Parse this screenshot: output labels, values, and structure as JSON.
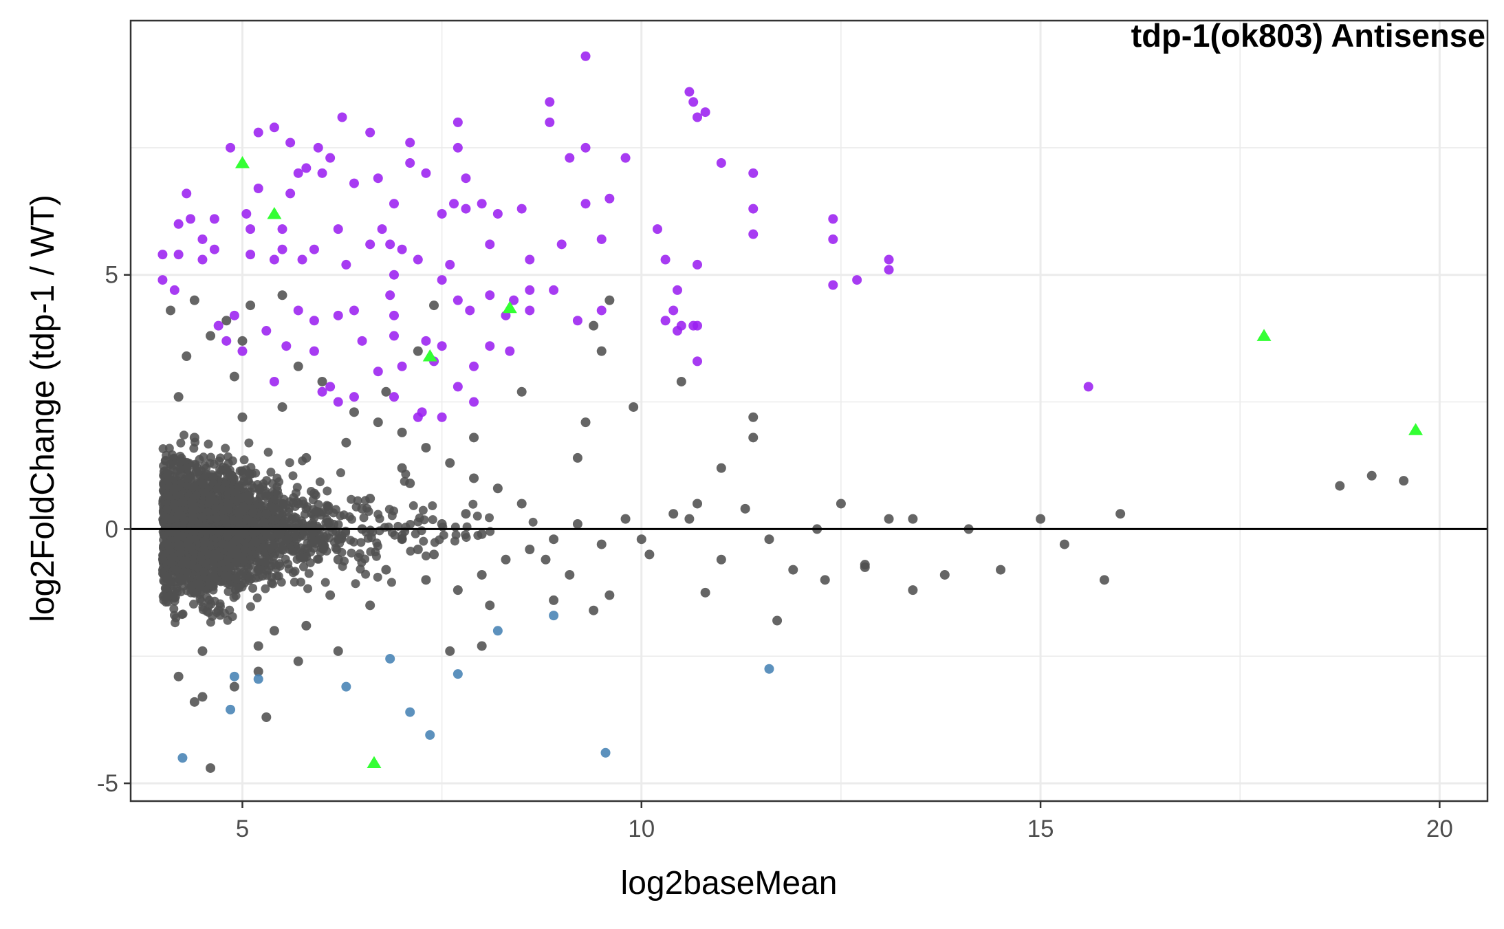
{
  "chart_data": {
    "type": "scatter",
    "title": "tdp-1(ok803) Antisense",
    "xlabel": "log2baseMean",
    "ylabel": "log2FoldChange (tdp-1 / WT)",
    "xlim": [
      3.6,
      20.6
    ],
    "ylim": [
      -5.35,
      10.0
    ],
    "x_ticks": [
      5,
      10,
      15,
      20
    ],
    "x_tick_labels": [
      "5",
      "10",
      "15",
      "20"
    ],
    "y_ticks": [
      -5,
      0,
      5
    ],
    "y_tick_labels": [
      "-5",
      "0",
      "5"
    ],
    "grid": true,
    "legend": "none",
    "reference_line_y": 0,
    "colors": {
      "up": "#9b20f0",
      "down": "#4682b4",
      "ns": "#505050",
      "highlight": "#33ff33",
      "zero_line": "#000000"
    },
    "series": [
      {
        "marker": "circle",
        "color_key": "up",
        "points": [
          [
            9.3,
            9.3
          ],
          [
            10.6,
            8.6
          ],
          [
            10.65,
            8.4
          ],
          [
            10.8,
            8.2
          ],
          [
            10.7,
            8.1
          ],
          [
            8.85,
            8.4
          ],
          [
            8.85,
            8.0
          ],
          [
            7.7,
            8.0
          ],
          [
            7.7,
            7.5
          ],
          [
            6.25,
            8.1
          ],
          [
            6.6,
            7.8
          ],
          [
            7.1,
            7.6
          ],
          [
            5.2,
            7.8
          ],
          [
            5.4,
            7.9
          ],
          [
            5.6,
            7.6
          ],
          [
            5.95,
            7.5
          ],
          [
            6.1,
            7.3
          ],
          [
            4.85,
            7.5
          ],
          [
            7.1,
            7.2
          ],
          [
            9.3,
            7.5
          ],
          [
            9.1,
            7.3
          ],
          [
            9.8,
            7.3
          ],
          [
            11.0,
            7.2
          ],
          [
            11.4,
            7.0
          ],
          [
            7.8,
            6.9
          ],
          [
            7.3,
            7.0
          ],
          [
            6.0,
            7.0
          ],
          [
            5.8,
            7.1
          ],
          [
            5.7,
            7.0
          ],
          [
            6.4,
            6.8
          ],
          [
            6.7,
            6.9
          ],
          [
            5.2,
            6.7
          ],
          [
            5.6,
            6.6
          ],
          [
            4.3,
            6.6
          ],
          [
            5.05,
            6.2
          ],
          [
            9.3,
            6.4
          ],
          [
            9.6,
            6.5
          ],
          [
            11.4,
            6.3
          ],
          [
            12.4,
            6.1
          ],
          [
            7.8,
            6.3
          ],
          [
            7.5,
            6.2
          ],
          [
            7.65,
            6.4
          ],
          [
            8.0,
            6.4
          ],
          [
            8.2,
            6.2
          ],
          [
            8.5,
            6.3
          ],
          [
            6.9,
            6.4
          ],
          [
            4.2,
            6.0
          ],
          [
            4.35,
            6.1
          ],
          [
            4.65,
            6.1
          ],
          [
            5.1,
            5.9
          ],
          [
            5.5,
            5.9
          ],
          [
            6.2,
            5.9
          ],
          [
            6.75,
            5.9
          ],
          [
            10.2,
            5.9
          ],
          [
            9.5,
            5.7
          ],
          [
            9.0,
            5.6
          ],
          [
            11.4,
            5.8
          ],
          [
            12.4,
            5.7
          ],
          [
            4.5,
            5.7
          ],
          [
            4.65,
            5.5
          ],
          [
            5.9,
            5.5
          ],
          [
            5.5,
            5.5
          ],
          [
            6.6,
            5.6
          ],
          [
            6.85,
            5.6
          ],
          [
            7.0,
            5.5
          ],
          [
            8.1,
            5.6
          ],
          [
            4.0,
            5.4
          ],
          [
            4.2,
            5.4
          ],
          [
            4.5,
            5.3
          ],
          [
            5.1,
            5.4
          ],
          [
            5.4,
            5.3
          ],
          [
            5.75,
            5.3
          ],
          [
            6.3,
            5.2
          ],
          [
            7.2,
            5.3
          ],
          [
            7.6,
            5.2
          ],
          [
            8.6,
            5.3
          ],
          [
            10.3,
            5.3
          ],
          [
            10.7,
            5.2
          ],
          [
            13.1,
            5.3
          ],
          [
            13.1,
            5.1
          ],
          [
            4.0,
            4.9
          ],
          [
            4.15,
            4.7
          ],
          [
            6.9,
            5.0
          ],
          [
            7.5,
            4.9
          ],
          [
            12.7,
            4.9
          ],
          [
            12.4,
            4.8
          ],
          [
            8.6,
            4.7
          ],
          [
            8.9,
            4.7
          ],
          [
            10.45,
            4.7
          ],
          [
            6.85,
            4.6
          ],
          [
            8.1,
            4.6
          ],
          [
            8.4,
            4.5
          ],
          [
            9.5,
            4.3
          ],
          [
            9.2,
            4.1
          ],
          [
            10.3,
            4.1
          ],
          [
            10.4,
            4.3
          ],
          [
            10.5,
            4.0
          ],
          [
            10.7,
            4.0
          ],
          [
            10.45,
            3.9
          ],
          [
            6.4,
            4.3
          ],
          [
            6.2,
            4.2
          ],
          [
            5.7,
            4.3
          ],
          [
            5.9,
            4.1
          ],
          [
            7.7,
            4.5
          ],
          [
            7.85,
            4.3
          ],
          [
            8.3,
            4.2
          ],
          [
            8.6,
            4.3
          ],
          [
            4.7,
            4.0
          ],
          [
            4.9,
            4.2
          ],
          [
            5.3,
            3.9
          ],
          [
            5.55,
            3.6
          ],
          [
            6.5,
            3.7
          ],
          [
            6.9,
            3.8
          ],
          [
            7.3,
            3.7
          ],
          [
            7.5,
            3.6
          ],
          [
            8.1,
            3.6
          ],
          [
            8.35,
            3.5
          ],
          [
            6.9,
            4.2
          ],
          [
            4.8,
            3.7
          ],
          [
            5.0,
            3.5
          ],
          [
            5.9,
            3.5
          ],
          [
            6.7,
            3.1
          ],
          [
            7.0,
            3.2
          ],
          [
            7.4,
            3.3
          ],
          [
            7.9,
            3.2
          ],
          [
            10.7,
            3.3
          ],
          [
            10.65,
            4.0
          ],
          [
            15.6,
            2.8
          ],
          [
            6.1,
            2.8
          ],
          [
            6.4,
            2.6
          ],
          [
            6.9,
            2.6
          ],
          [
            7.9,
            2.5
          ],
          [
            7.25,
            2.3
          ],
          [
            7.5,
            2.2
          ],
          [
            7.2,
            2.2
          ],
          [
            5.4,
            2.9
          ],
          [
            6.2,
            2.5
          ],
          [
            7.7,
            2.8
          ],
          [
            6.0,
            2.7
          ]
        ]
      },
      {
        "marker": "circle",
        "color_key": "down",
        "points": [
          [
            4.9,
            -2.9
          ],
          [
            5.2,
            -2.95
          ],
          [
            4.85,
            -3.55
          ],
          [
            6.3,
            -3.1
          ],
          [
            6.85,
            -2.55
          ],
          [
            7.1,
            -3.6
          ],
          [
            7.35,
            -4.05
          ],
          [
            7.7,
            -2.85
          ],
          [
            8.2,
            -2.0
          ],
          [
            8.9,
            -1.7
          ],
          [
            9.55,
            -4.4
          ],
          [
            4.25,
            -4.5
          ],
          [
            11.6,
            -2.75
          ]
        ]
      },
      {
        "marker": "circle",
        "color_key": "ns",
        "points": [
          [
            4.5,
            0.5
          ],
          [
            4.2,
            -0.3
          ],
          [
            4.8,
            0.9
          ],
          [
            5.1,
            -0.6
          ],
          [
            4.3,
            1.2
          ],
          [
            4.6,
            -1.1
          ],
          [
            5.3,
            0.3
          ],
          [
            5.6,
            -0.4
          ],
          [
            5.9,
            0.7
          ],
          [
            6.2,
            -0.2
          ],
          [
            4.4,
            1.8
          ],
          [
            4.7,
            -1.6
          ],
          [
            5.0,
            2.2
          ],
          [
            5.4,
            -2.0
          ],
          [
            5.8,
            1.4
          ],
          [
            6.1,
            -1.3
          ],
          [
            6.5,
            0.4
          ],
          [
            6.8,
            -0.8
          ],
          [
            7.1,
            0.9
          ],
          [
            7.4,
            -0.5
          ],
          [
            4.2,
            2.6
          ],
          [
            4.5,
            -2.4
          ],
          [
            4.9,
            3.0
          ],
          [
            5.2,
            -2.8
          ],
          [
            5.5,
            2.4
          ],
          [
            5.8,
            -1.9
          ],
          [
            6.3,
            1.7
          ],
          [
            6.6,
            -1.5
          ],
          [
            7.0,
            1.2
          ],
          [
            7.3,
            -1.0
          ],
          [
            4.3,
            3.4
          ],
          [
            4.6,
            3.8
          ],
          [
            4.1,
            4.3
          ],
          [
            4.4,
            4.5
          ],
          [
            4.8,
            4.1
          ],
          [
            5.1,
            4.4
          ],
          [
            5.5,
            4.6
          ],
          [
            4.2,
            -2.9
          ],
          [
            4.5,
            -3.3
          ],
          [
            4.9,
            -3.1
          ],
          [
            5.3,
            -3.7
          ],
          [
            4.6,
            -4.7
          ],
          [
            4.4,
            -3.4
          ],
          [
            5.0,
            3.7
          ],
          [
            5.7,
            3.2
          ],
          [
            6.0,
            2.9
          ],
          [
            6.4,
            2.3
          ],
          [
            6.7,
            2.1
          ],
          [
            7.0,
            1.9
          ],
          [
            7.3,
            1.6
          ],
          [
            7.6,
            1.3
          ],
          [
            7.9,
            1.0
          ],
          [
            8.2,
            0.8
          ],
          [
            8.5,
            0.5
          ],
          [
            7.7,
            -1.2
          ],
          [
            8.0,
            -0.9
          ],
          [
            8.3,
            -0.6
          ],
          [
            8.6,
            -0.4
          ],
          [
            8.9,
            -0.2
          ],
          [
            9.2,
            0.1
          ],
          [
            9.5,
            -0.3
          ],
          [
            9.8,
            0.2
          ],
          [
            10.1,
            -0.5
          ],
          [
            10.4,
            0.3
          ],
          [
            10.7,
            0.5
          ],
          [
            11.0,
            -0.6
          ],
          [
            11.3,
            0.4
          ],
          [
            11.6,
            -0.2
          ],
          [
            11.9,
            -0.8
          ],
          [
            12.2,
            0.0
          ],
          [
            12.5,
            0.5
          ],
          [
            12.8,
            -0.7
          ],
          [
            13.1,
            0.2
          ],
          [
            13.4,
            0.2
          ],
          [
            13.8,
            -0.9
          ],
          [
            14.1,
            0.0
          ],
          [
            14.5,
            -0.8
          ],
          [
            15.0,
            0.2
          ],
          [
            15.3,
            -0.3
          ],
          [
            15.8,
            -1.0
          ],
          [
            16.0,
            0.3
          ],
          [
            13.4,
            -1.2
          ],
          [
            12.8,
            -0.75
          ],
          [
            12.3,
            -1.0
          ],
          [
            11.7,
            -1.8
          ],
          [
            10.8,
            -1.25
          ],
          [
            11.4,
            2.2
          ],
          [
            11.4,
            1.8
          ],
          [
            9.9,
            2.4
          ],
          [
            9.6,
            4.5
          ],
          [
            9.4,
            4.0
          ],
          [
            9.5,
            3.5
          ],
          [
            9.3,
            2.1
          ],
          [
            10.5,
            2.9
          ],
          [
            11.0,
            1.2
          ],
          [
            9.2,
            1.4
          ],
          [
            8.5,
            2.7
          ],
          [
            7.9,
            1.8
          ],
          [
            8.8,
            -0.6
          ],
          [
            9.1,
            -0.9
          ],
          [
            9.6,
            -1.3
          ],
          [
            10.0,
            -0.2
          ],
          [
            10.6,
            0.2
          ],
          [
            7.4,
            4.4
          ],
          [
            7.2,
            3.5
          ],
          [
            6.8,
            2.7
          ],
          [
            8.0,
            -2.3
          ],
          [
            7.6,
            -2.4
          ],
          [
            8.9,
            -1.4
          ],
          [
            9.4,
            -1.6
          ],
          [
            8.1,
            -1.5
          ],
          [
            6.2,
            -2.4
          ],
          [
            5.7,
            -2.6
          ],
          [
            5.2,
            -2.3
          ],
          [
            18.75,
            0.85
          ],
          [
            19.15,
            1.05
          ],
          [
            19.55,
            0.95
          ],
          [
            4.3,
            0.0
          ],
          [
            4.6,
            0.2
          ],
          [
            5.0,
            -0.1
          ],
          [
            5.5,
            0.1
          ],
          [
            6.0,
            -0.3
          ],
          [
            6.5,
            0.0
          ],
          [
            7.0,
            -0.2
          ],
          [
            7.5,
            0.1
          ],
          [
            8.0,
            -0.1
          ],
          [
            4.4,
            -0.5
          ],
          [
            4.8,
            0.6
          ],
          [
            5.2,
            -0.8
          ],
          [
            5.7,
            0.5
          ],
          [
            6.2,
            -0.6
          ],
          [
            6.6,
            0.6
          ],
          [
            7.2,
            -0.4
          ],
          [
            7.8,
            0.3
          ]
        ]
      },
      {
        "marker": "triangle",
        "color_key": "highlight",
        "points": [
          [
            5.0,
            7.2
          ],
          [
            5.4,
            6.2
          ],
          [
            8.35,
            4.35
          ],
          [
            7.35,
            3.4
          ],
          [
            6.65,
            -4.6
          ],
          [
            17.8,
            3.8
          ],
          [
            19.7,
            1.95
          ]
        ]
      }
    ]
  }
}
